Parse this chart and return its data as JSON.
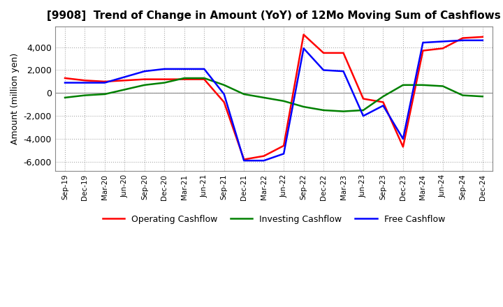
{
  "title": "[9908]  Trend of Change in Amount (YoY) of 12Mo Moving Sum of Cashflows",
  "ylabel": "Amount (million yen)",
  "ylim": [
    -6800,
    5800
  ],
  "yticks": [
    -6000,
    -4000,
    -2000,
    0,
    2000,
    4000
  ],
  "background_color": "#ffffff",
  "grid_color": "#aaaaaa",
  "x_labels": [
    "Sep-19",
    "Dec-19",
    "Mar-20",
    "Jun-20",
    "Sep-20",
    "Dec-20",
    "Mar-21",
    "Jun-21",
    "Sep-21",
    "Dec-21",
    "Mar-22",
    "Jun-22",
    "Sep-22",
    "Dec-22",
    "Mar-23",
    "Jun-23",
    "Sep-23",
    "Dec-23",
    "Mar-24",
    "Jun-24",
    "Sep-24",
    "Dec-24"
  ],
  "operating": [
    1300,
    1100,
    1000,
    1100,
    1200,
    1200,
    1200,
    1200,
    -800,
    -5800,
    -5500,
    -4600,
    5100,
    3500,
    3500,
    -500,
    -800,
    -4700,
    3700,
    3900,
    4800,
    4900
  ],
  "investing": [
    -400,
    -200,
    -100,
    300,
    700,
    900,
    1300,
    1300,
    700,
    -100,
    -400,
    -700,
    -1200,
    -1500,
    -1600,
    -1500,
    -300,
    700,
    700,
    600,
    -200,
    -300
  ],
  "free": [
    900,
    900,
    900,
    1400,
    1900,
    2100,
    2100,
    2100,
    -100,
    -5900,
    -5900,
    -5300,
    3900,
    2000,
    1900,
    -2000,
    -1100,
    -4000,
    4400,
    4500,
    4600,
    4600
  ],
  "op_color": "#ff0000",
  "inv_color": "#008000",
  "free_color": "#0000ff",
  "line_width": 1.8
}
